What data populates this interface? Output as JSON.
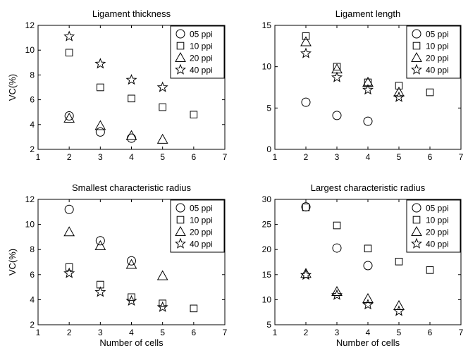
{
  "legend_labels": [
    "05 ppi",
    "10 ppi",
    "20 ppi",
    "40 ppi"
  ],
  "legend_markers": [
    "circle",
    "square",
    "triangle",
    "star"
  ],
  "x_label": "Number of cells",
  "y_label": "VC(%)",
  "chart_data": [
    {
      "type": "scatter",
      "title": "Ligament thickness",
      "xlabel": "",
      "ylabel": "VC(%)",
      "xlim": [
        1,
        7
      ],
      "ylim": [
        2,
        12
      ],
      "xticks": [
        1,
        2,
        3,
        4,
        5,
        6,
        7
      ],
      "yticks": [
        2,
        4,
        6,
        8,
        10,
        12
      ],
      "legend_position": "top-right",
      "grid": false,
      "series": [
        {
          "name": "05 ppi",
          "marker": "circle",
          "x": [
            2,
            3,
            4
          ],
          "y": [
            4.7,
            3.4,
            2.9
          ]
        },
        {
          "name": "10 ppi",
          "marker": "square",
          "x": [
            2,
            3,
            4,
            5,
            6
          ],
          "y": [
            9.8,
            7.0,
            6.1,
            5.4,
            4.8
          ]
        },
        {
          "name": "20 ppi",
          "marker": "triangle",
          "x": [
            2,
            3,
            4,
            5
          ],
          "y": [
            4.5,
            3.9,
            3.1,
            2.8
          ]
        },
        {
          "name": "40 ppi",
          "marker": "star",
          "x": [
            2,
            3,
            4,
            5
          ],
          "y": [
            11.1,
            8.9,
            7.6,
            7.0
          ]
        }
      ]
    },
    {
      "type": "scatter",
      "title": "Ligament length",
      "xlabel": "",
      "ylabel": "",
      "xlim": [
        1,
        7
      ],
      "ylim": [
        0,
        15
      ],
      "xticks": [
        1,
        2,
        3,
        4,
        5,
        6,
        7
      ],
      "yticks": [
        0,
        5,
        10,
        15
      ],
      "legend_position": "top-right",
      "grid": false,
      "series": [
        {
          "name": "05 ppi",
          "marker": "circle",
          "x": [
            2,
            3,
            4
          ],
          "y": [
            5.7,
            4.1,
            3.4
          ]
        },
        {
          "name": "10 ppi",
          "marker": "square",
          "x": [
            2,
            3,
            4,
            5,
            6
          ],
          "y": [
            13.7,
            10.0,
            8.1,
            7.7,
            6.9
          ]
        },
        {
          "name": "20 ppi",
          "marker": "triangle",
          "x": [
            2,
            3,
            4,
            5
          ],
          "y": [
            13.0,
            9.7,
            8.1,
            6.9
          ]
        },
        {
          "name": "40 ppi",
          "marker": "star",
          "x": [
            2,
            3,
            4,
            5
          ],
          "y": [
            11.6,
            8.7,
            7.2,
            6.3
          ]
        }
      ]
    },
    {
      "type": "scatter",
      "title": "Smallest characteristic radius",
      "xlabel": "Number of cells",
      "ylabel": "VC(%)",
      "xlim": [
        1,
        7
      ],
      "ylim": [
        2,
        12
      ],
      "xticks": [
        1,
        2,
        3,
        4,
        5,
        6,
        7
      ],
      "yticks": [
        2,
        4,
        6,
        8,
        10,
        12
      ],
      "legend_position": "top-right",
      "grid": false,
      "series": [
        {
          "name": "05 ppi",
          "marker": "circle",
          "x": [
            2,
            3,
            4
          ],
          "y": [
            11.2,
            8.7,
            7.1
          ]
        },
        {
          "name": "10 ppi",
          "marker": "square",
          "x": [
            2,
            3,
            4,
            5,
            6
          ],
          "y": [
            6.6,
            5.2,
            4.2,
            3.7,
            3.3
          ]
        },
        {
          "name": "20 ppi",
          "marker": "triangle",
          "x": [
            2,
            3,
            4,
            5
          ],
          "y": [
            9.4,
            8.3,
            6.8,
            5.9
          ]
        },
        {
          "name": "40 ppi",
          "marker": "star",
          "x": [
            2,
            3,
            4,
            5
          ],
          "y": [
            6.1,
            4.6,
            3.9,
            3.4
          ]
        }
      ]
    },
    {
      "type": "scatter",
      "title": "Largest characteristic radius",
      "xlabel": "Number of cells",
      "ylabel": "",
      "xlim": [
        1,
        7
      ],
      "ylim": [
        5,
        30
      ],
      "xticks": [
        1,
        2,
        3,
        4,
        5,
        6,
        7
      ],
      "yticks": [
        5,
        10,
        15,
        20,
        25,
        30
      ],
      "legend_position": "top-right",
      "grid": false,
      "series": [
        {
          "name": "05 ppi",
          "marker": "circle",
          "x": [
            2,
            3,
            4
          ],
          "y": [
            28.5,
            20.3,
            16.8
          ]
        },
        {
          "name": "10 ppi",
          "marker": "square",
          "x": [
            2,
            3,
            4,
            5,
            6
          ],
          "y": [
            28.4,
            24.8,
            20.2,
            17.6,
            15.9
          ]
        },
        {
          "name": "20 ppi",
          "marker": "triangle",
          "x": [
            2,
            3,
            4,
            5
          ],
          "y": [
            15.2,
            11.6,
            10.2,
            8.8
          ]
        },
        {
          "name": "40 ppi",
          "marker": "star",
          "x": [
            2,
            3,
            4,
            5
          ],
          "y": [
            14.9,
            10.9,
            9.0,
            7.7
          ]
        }
      ]
    }
  ]
}
